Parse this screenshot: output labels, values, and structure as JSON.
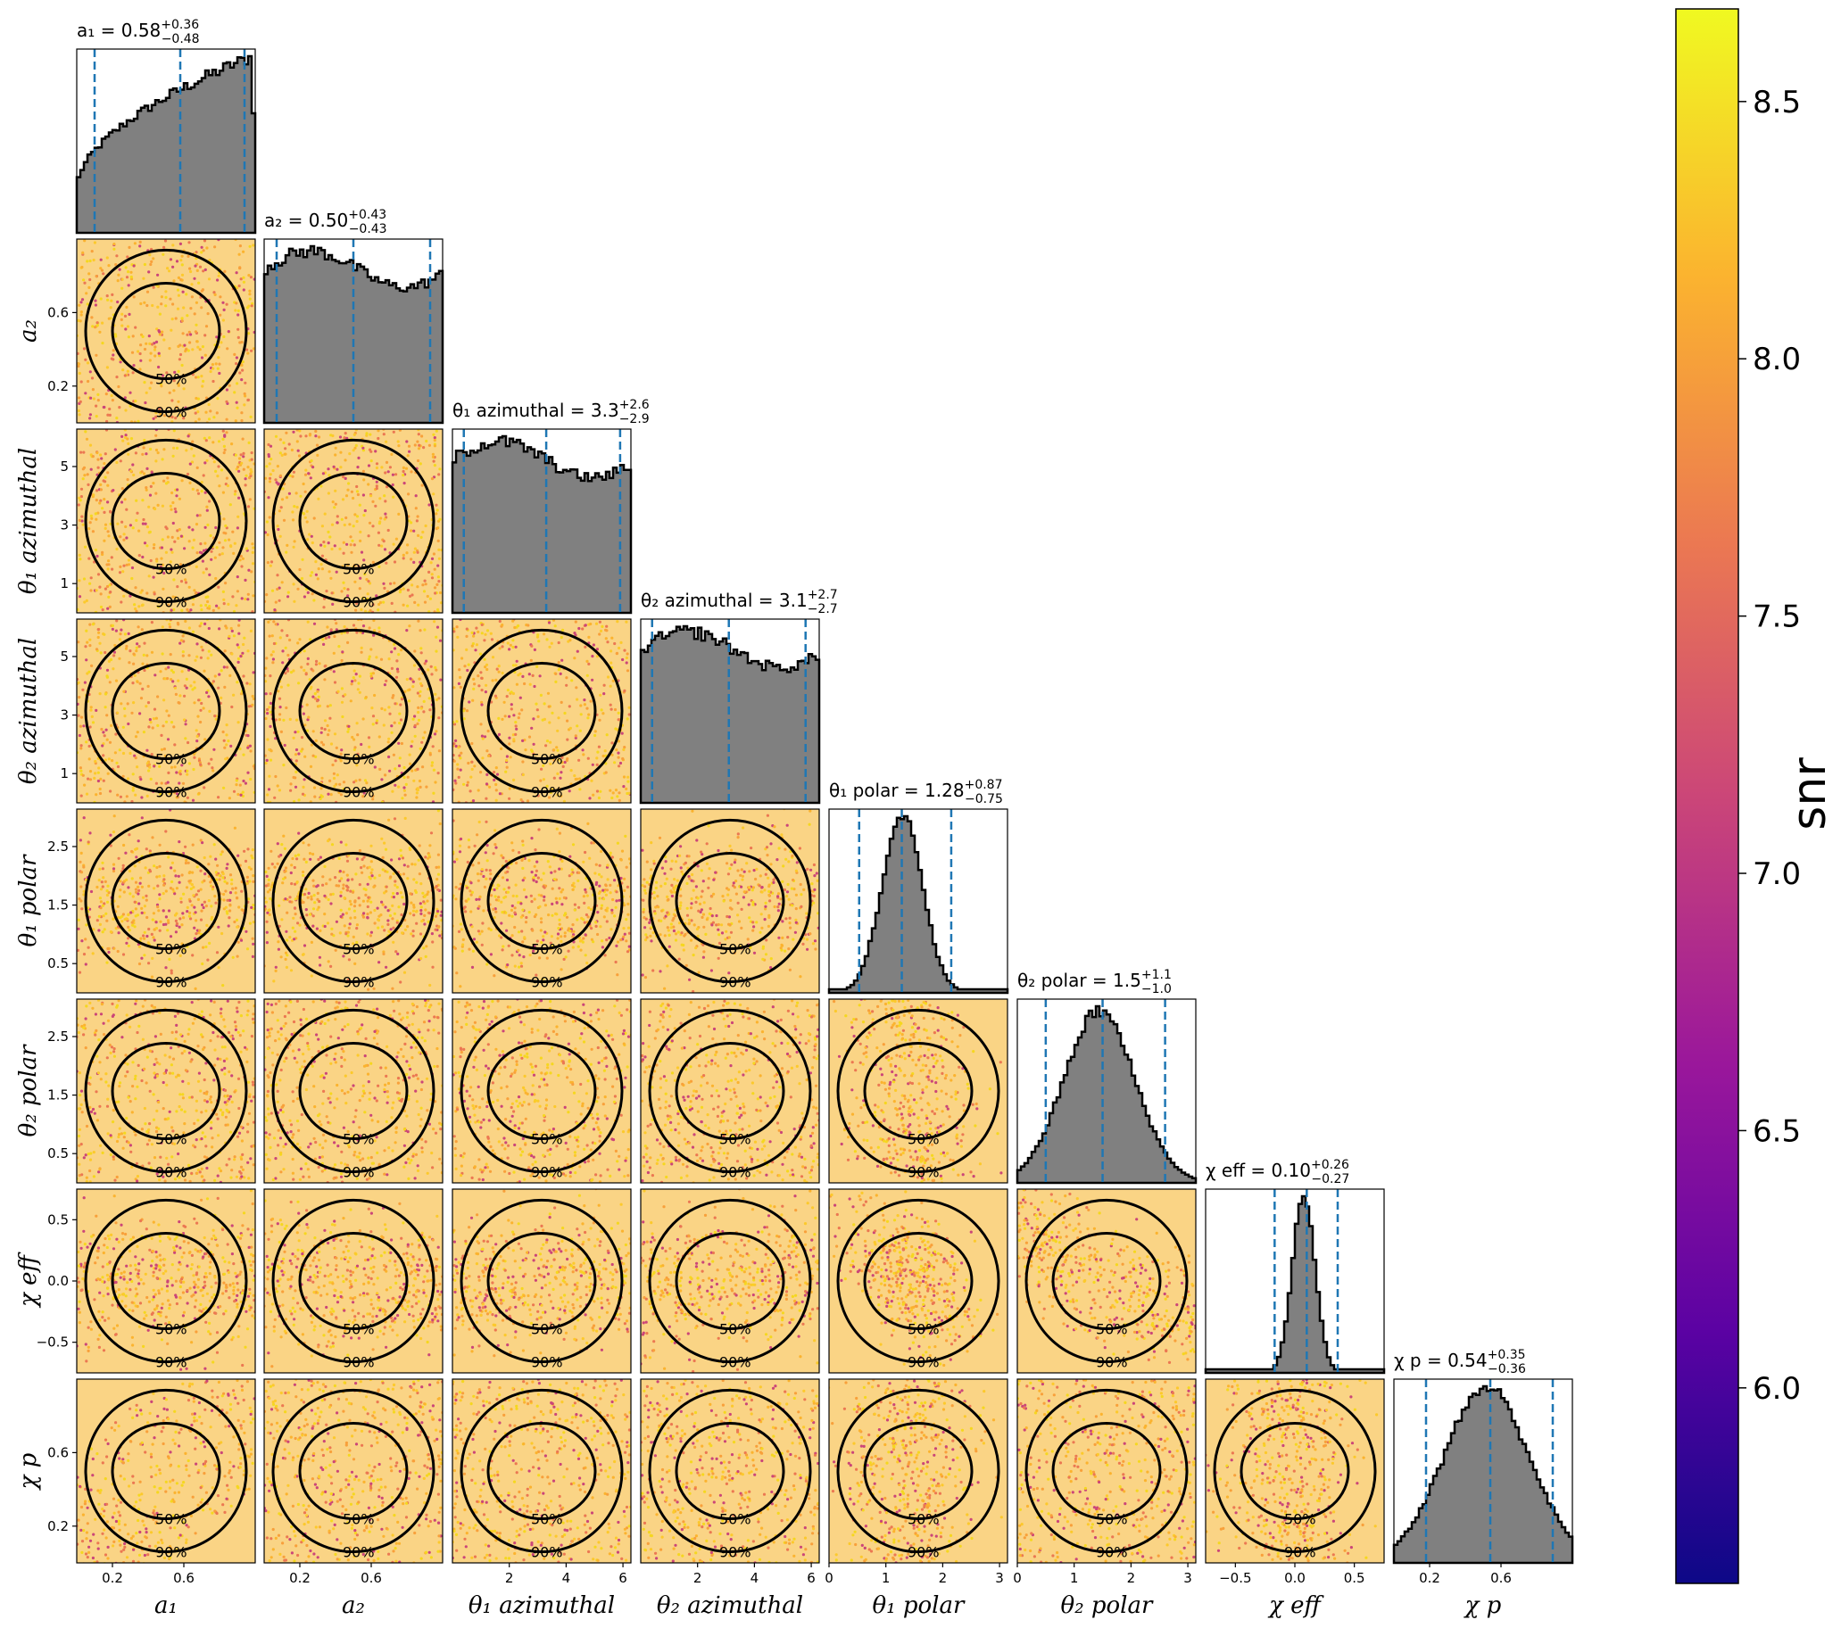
{
  "figure": {
    "colorbar": {
      "label": "snr",
      "range": [
        5.62,
        8.68
      ],
      "ticks": [
        "6.0",
        "6.5",
        "7.0",
        "7.5",
        "8.0",
        "8.5"
      ],
      "tick_values": [
        6.0,
        6.5,
        7.0,
        7.5,
        8.0,
        8.5
      ],
      "colormap": "plasma",
      "colors": [
        "#0d0887",
        "#5b02a3",
        "#9a179b",
        "#cb4678",
        "#eb7852",
        "#fbb32f",
        "#f0f921"
      ]
    },
    "hist_color": "#808080",
    "quantile_color": "#1f77b4",
    "contour_levels": [
      "50%",
      "90%"
    ]
  },
  "chart_data": {
    "type": "corner",
    "parameters": [
      {
        "id": "a1",
        "label": "a₁",
        "title": "a₁ = 0.58",
        "median": 0.58,
        "plus": "+0.36",
        "minus": "−0.48",
        "range": [
          0.0,
          1.0
        ],
        "ticks": [
          0.2,
          0.6
        ],
        "tick_labels": [
          "0.2",
          "0.6"
        ],
        "shape": "rising"
      },
      {
        "id": "a2",
        "label": "a₂",
        "title": "a₂ = 0.50",
        "median": 0.5,
        "plus": "+0.43",
        "minus": "−0.43",
        "range": [
          0.0,
          1.0
        ],
        "ticks": [
          0.2,
          0.6
        ],
        "tick_labels": [
          "0.2",
          "0.6"
        ],
        "shape": "flat"
      },
      {
        "id": "theta1_az",
        "label": "θ₁ azimuthal",
        "title": "θ₁ azimuthal = 3.3",
        "median": 3.3,
        "plus": "+2.6",
        "minus": "−2.9",
        "range": [
          0.0,
          6.28
        ],
        "ticks": [
          1,
          3,
          5
        ],
        "tick_labels": [
          "1",
          "3",
          "5"
        ],
        "x_ticks": [
          2,
          4,
          6
        ],
        "x_tick_labels": [
          "2",
          "4",
          "6"
        ],
        "shape": "flat"
      },
      {
        "id": "theta2_az",
        "label": "θ₂ azimuthal",
        "title": "θ₂ azimuthal = 3.1",
        "median": 3.1,
        "plus": "+2.7",
        "minus": "−2.7",
        "range": [
          0.0,
          6.28
        ],
        "ticks": [
          1,
          3,
          5
        ],
        "tick_labels": [
          "1",
          "3",
          "5"
        ],
        "x_ticks": [
          2,
          4,
          6
        ],
        "x_tick_labels": [
          "2",
          "4",
          "6"
        ],
        "shape": "flat"
      },
      {
        "id": "theta1_pol",
        "label": "θ₁ polar",
        "title": "θ₁ polar = 1.28",
        "median": 1.28,
        "plus": "+0.87",
        "minus": "−0.75",
        "range": [
          0.0,
          3.14
        ],
        "ticks": [
          0.5,
          1.5,
          2.5
        ],
        "tick_labels": [
          "0.5",
          "1.5",
          "2.5"
        ],
        "x_ticks": [
          0,
          1,
          2,
          3
        ],
        "x_tick_labels": [
          "0",
          "1",
          "2",
          "3"
        ],
        "shape": "peak"
      },
      {
        "id": "theta2_pol",
        "label": "θ₂ polar",
        "title": "θ₂ polar = 1.5",
        "median": 1.5,
        "plus": "+1.1",
        "minus": "−1.0",
        "range": [
          0.0,
          3.14
        ],
        "ticks": [
          0.5,
          1.5,
          2.5
        ],
        "tick_labels": [
          "0.5",
          "1.5",
          "2.5"
        ],
        "x_ticks": [
          0,
          1,
          2,
          3
        ],
        "x_tick_labels": [
          "0",
          "1",
          "2",
          "3"
        ],
        "shape": "broad"
      },
      {
        "id": "chi_eff",
        "label": "χ eff",
        "title": "χ eff = 0.10",
        "median": 0.1,
        "plus": "+0.26",
        "minus": "−0.27",
        "range": [
          -0.75,
          0.75
        ],
        "ticks": [
          -0.5,
          0.0,
          0.5
        ],
        "tick_labels": [
          "−0.5",
          "0.0",
          "0.5"
        ],
        "shape": "narrow"
      },
      {
        "id": "chi_p",
        "label": "χ p",
        "title": "χ p = 0.54",
        "median": 0.54,
        "plus": "+0.35",
        "minus": "−0.36",
        "range": [
          0.0,
          1.0
        ],
        "ticks": [
          0.2,
          0.6
        ],
        "tick_labels": [
          "0.2",
          "0.6"
        ],
        "shape": "hump"
      }
    ]
  }
}
